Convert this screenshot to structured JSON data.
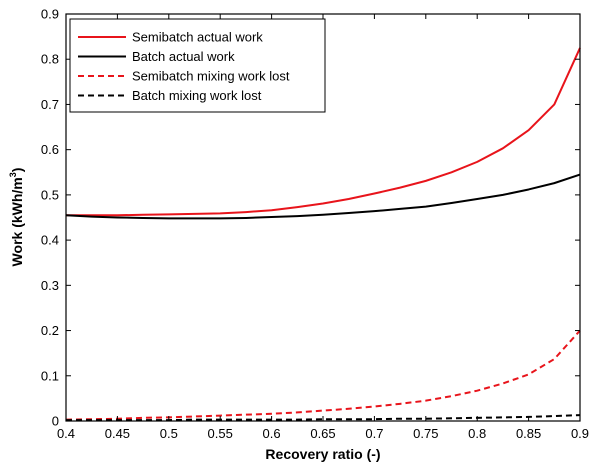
{
  "chart_data": {
    "type": "line",
    "title": "",
    "xlabel": "Recovery ratio (-)",
    "ylabel": {
      "prefix": "Work (kWh/m",
      "sup": "3",
      "suffix": ")"
    },
    "xlim": [
      0.4,
      0.9
    ],
    "ylim": [
      0,
      0.9
    ],
    "xticks": [
      0.4,
      0.45,
      0.5,
      0.55,
      0.6,
      0.65,
      0.7,
      0.75,
      0.8,
      0.85,
      0.9
    ],
    "xtick_labels": [
      "0.4",
      "0.45",
      "0.5",
      "0.55",
      "0.6",
      "0.65",
      "0.7",
      "0.75",
      "0.8",
      "0.85",
      "0.9"
    ],
    "yticks": [
      0,
      0.1,
      0.2,
      0.3,
      0.4,
      0.5,
      0.6,
      0.7,
      0.8,
      0.9
    ],
    "ytick_labels": [
      "0",
      "0.1",
      "0.2",
      "0.3",
      "0.4",
      "0.5",
      "0.6",
      "0.7",
      "0.8",
      "0.9"
    ],
    "grid": false,
    "legend_position": "top-left",
    "x": [
      0.4,
      0.425,
      0.45,
      0.475,
      0.5,
      0.525,
      0.55,
      0.575,
      0.6,
      0.625,
      0.65,
      0.675,
      0.7,
      0.725,
      0.75,
      0.775,
      0.8,
      0.825,
      0.85,
      0.875,
      0.9
    ],
    "series": [
      {
        "name": "Semibatch actual work",
        "color": "#e8141b",
        "dash": "solid",
        "values": [
          0.455,
          0.455,
          0.455,
          0.456,
          0.457,
          0.458,
          0.459,
          0.462,
          0.466,
          0.473,
          0.481,
          0.491,
          0.503,
          0.516,
          0.531,
          0.55,
          0.573,
          0.603,
          0.643,
          0.7,
          0.825
        ]
      },
      {
        "name": "Batch actual work",
        "color": "#000000",
        "dash": "solid",
        "values": [
          0.455,
          0.452,
          0.45,
          0.449,
          0.448,
          0.448,
          0.448,
          0.449,
          0.451,
          0.453,
          0.456,
          0.46,
          0.464,
          0.469,
          0.474,
          0.482,
          0.491,
          0.5,
          0.512,
          0.526,
          0.545
        ]
      },
      {
        "name": "Semibatch mixing work lost",
        "color": "#e8141b",
        "dash": "dashed",
        "values": [
          0.003,
          0.004,
          0.005,
          0.007,
          0.008,
          0.01,
          0.012,
          0.014,
          0.016,
          0.019,
          0.023,
          0.027,
          0.032,
          0.038,
          0.045,
          0.055,
          0.067,
          0.083,
          0.103,
          0.137,
          0.2
        ]
      },
      {
        "name": "Batch mixing work lost",
        "color": "#000000",
        "dash": "dashed",
        "values": [
          0.002,
          0.002,
          0.002,
          0.002,
          0.002,
          0.003,
          0.003,
          0.003,
          0.003,
          0.003,
          0.004,
          0.004,
          0.004,
          0.005,
          0.005,
          0.006,
          0.007,
          0.008,
          0.009,
          0.011,
          0.013
        ]
      }
    ]
  }
}
